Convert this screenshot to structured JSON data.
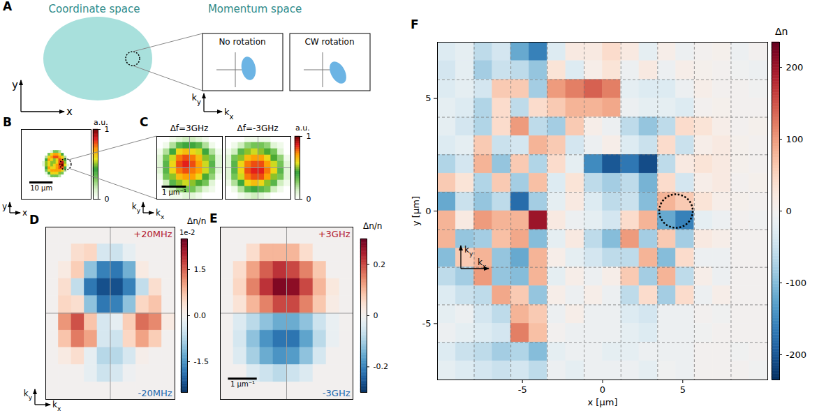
{
  "chart_data": [
    {
      "type": "heatmap",
      "panel": "B",
      "xlim": [
        -15,
        15
      ],
      "ylim": [
        -15,
        15
      ],
      "xticks": [],
      "yticks": [],
      "grid": false,
      "tick_labels": false,
      "cells_extent": [
        -7,
        7
      ],
      "cells": [
        [
          0,
          0,
          0,
          0,
          0,
          0,
          0,
          0,
          0,
          0,
          0,
          0
        ],
        [
          0,
          0,
          0,
          0,
          0.1,
          0.3,
          0.3,
          0.2,
          0,
          0,
          0,
          0
        ],
        [
          0,
          0,
          0,
          0.3,
          0.6,
          0.7,
          0.7,
          0.6,
          0.4,
          0,
          0,
          0
        ],
        [
          0,
          0,
          0.2,
          0.6,
          0.7,
          0.8,
          0.8,
          0.7,
          0.6,
          0.2,
          0,
          0
        ],
        [
          0,
          0,
          0.4,
          0.7,
          0.6,
          0.5,
          0.6,
          0.8,
          0.7,
          0.4,
          0,
          0
        ],
        [
          0,
          0.1,
          0.5,
          0.6,
          0.5,
          0.5,
          0.6,
          0.8,
          0.9,
          0.5,
          0,
          0
        ],
        [
          0,
          0.1,
          0.5,
          0.6,
          0.5,
          0.6,
          0.7,
          0.8,
          1,
          0.6,
          0.1,
          0
        ],
        [
          0,
          0,
          0.4,
          0.7,
          0.6,
          0.6,
          0.7,
          0.8,
          0.8,
          0.4,
          0,
          0
        ],
        [
          0,
          0,
          0.3,
          0.6,
          0.7,
          0.7,
          0.7,
          0.7,
          0.6,
          0.2,
          0,
          0
        ],
        [
          0,
          0,
          0.1,
          0.4,
          0.6,
          0.6,
          0.6,
          0.5,
          0.3,
          0,
          0,
          0
        ],
        [
          0,
          0,
          0,
          0.1,
          0.3,
          0.3,
          0.3,
          0.2,
          0,
          0,
          0,
          0
        ],
        [
          0,
          0,
          0,
          0,
          0,
          0,
          0,
          0,
          0,
          0,
          0,
          0
        ]
      ],
      "scale_bar": {
        "length": 10,
        "label": "10 µm"
      },
      "axis_labels": {
        "x": "x",
        "y": "y"
      },
      "colorbar": {
        "range": [
          0,
          1
        ],
        "ticks": [
          0,
          1
        ],
        "label": "a.u."
      }
    },
    {
      "type": "heatmap",
      "panel": "C",
      "xlim": [
        -1.35,
        1.35
      ],
      "ylim": [
        -1.35,
        1.35
      ],
      "xticks": [
        0
      ],
      "yticks": [
        0
      ],
      "grid": true,
      "tick_labels": false,
      "panels": [
        {
          "title": "Δf=3GHz",
          "cells": [
            [
              0,
              0,
              0.05,
              0.1,
              0.15,
              0.15,
              0.1,
              0.05,
              0,
              0
            ],
            [
              0,
              0.05,
              0.2,
              0.35,
              0.4,
              0.4,
              0.35,
              0.2,
              0.05,
              0
            ],
            [
              0.05,
              0.2,
              0.4,
              0.6,
              0.65,
              0.6,
              0.55,
              0.4,
              0.2,
              0.05
            ],
            [
              0.1,
              0.3,
              0.55,
              0.75,
              0.8,
              0.75,
              0.65,
              0.5,
              0.3,
              0.1
            ],
            [
              0.1,
              0.35,
              0.6,
              0.8,
              0.85,
              0.8,
              0.7,
              0.55,
              0.35,
              0.1
            ],
            [
              0.1,
              0.35,
              0.6,
              0.75,
              0.8,
              0.75,
              0.7,
              0.55,
              0.3,
              0.1
            ],
            [
              0.05,
              0.3,
              0.5,
              0.65,
              0.7,
              0.7,
              0.6,
              0.45,
              0.25,
              0.05
            ],
            [
              0,
              0.15,
              0.35,
              0.5,
              0.55,
              0.5,
              0.45,
              0.3,
              0.1,
              0
            ],
            [
              0,
              0.05,
              0.15,
              0.25,
              0.3,
              0.3,
              0.2,
              0.1,
              0.05,
              0
            ],
            [
              0,
              0,
              0.05,
              0.05,
              0.1,
              0.1,
              0.05,
              0,
              0,
              0
            ]
          ]
        },
        {
          "title": "Δf=-3GHz",
          "cells": [
            [
              0,
              0,
              0,
              0.05,
              0.05,
              0.05,
              0.05,
              0,
              0,
              0
            ],
            [
              0,
              0.05,
              0.15,
              0.25,
              0.3,
              0.3,
              0.25,
              0.1,
              0.05,
              0
            ],
            [
              0.05,
              0.15,
              0.35,
              0.5,
              0.55,
              0.5,
              0.45,
              0.3,
              0.1,
              0
            ],
            [
              0.1,
              0.3,
              0.5,
              0.65,
              0.7,
              0.7,
              0.6,
              0.45,
              0.25,
              0.05
            ],
            [
              0.1,
              0.35,
              0.6,
              0.75,
              0.8,
              0.8,
              0.7,
              0.55,
              0.3,
              0.1
            ],
            [
              0.1,
              0.35,
              0.6,
              0.8,
              0.85,
              0.85,
              0.75,
              0.6,
              0.35,
              0.1
            ],
            [
              0.1,
              0.3,
              0.55,
              0.75,
              0.8,
              0.8,
              0.7,
              0.5,
              0.3,
              0.1
            ],
            [
              0.05,
              0.2,
              0.4,
              0.6,
              0.65,
              0.6,
              0.5,
              0.35,
              0.15,
              0.05
            ],
            [
              0,
              0.05,
              0.2,
              0.35,
              0.4,
              0.35,
              0.3,
              0.15,
              0.05,
              0
            ],
            [
              0,
              0,
              0.05,
              0.1,
              0.15,
              0.1,
              0.05,
              0,
              0,
              0
            ]
          ]
        }
      ],
      "scale_bar": {
        "length": 1,
        "label": "1 µm⁻¹"
      },
      "axis_labels": {
        "x": "kx",
        "y": "ky"
      },
      "colorbar": {
        "range": [
          0,
          1
        ],
        "ticks": [
          0,
          1
        ],
        "label": "a.u."
      }
    },
    {
      "type": "heatmap",
      "panel": "D",
      "xlim": [
        -2.3,
        2.3
      ],
      "ylim": [
        -3.1,
        3.1
      ],
      "xticks": [
        0
      ],
      "yticks": [
        0
      ],
      "grid": true,
      "tick_labels": false,
      "cells": [
        [
          0,
          0,
          0,
          0,
          0,
          0,
          0,
          0,
          0,
          0
        ],
        [
          0,
          0,
          0.4,
          0.5,
          -0.4,
          -0.5,
          -0.2,
          0,
          0,
          0
        ],
        [
          0,
          0.2,
          0.6,
          -1.0,
          -1.7,
          -1.8,
          -1.2,
          0.2,
          0,
          0
        ],
        [
          0,
          0.4,
          -0.6,
          -1.8,
          -2.2,
          -2.2,
          -1.7,
          -0.6,
          0.4,
          0
        ],
        [
          0,
          0.5,
          0.4,
          -1.0,
          -1.8,
          -1.7,
          -1.0,
          0.5,
          0.7,
          0
        ],
        [
          0,
          1.1,
          1.6,
          0.7,
          -0.4,
          -0.2,
          0.6,
          1.4,
          1.2,
          0.2
        ],
        [
          0,
          0.7,
          1.3,
          1.0,
          -0.4,
          -0.5,
          0.5,
          1.0,
          0.6,
          0
        ],
        [
          0,
          0.2,
          0.4,
          -0.2,
          -0.7,
          -0.7,
          -0.4,
          0.1,
          0,
          0
        ],
        [
          0,
          0,
          0,
          -0.2,
          -0.5,
          -0.4,
          -0.1,
          0,
          0,
          0
        ],
        [
          0,
          0,
          0,
          0,
          0,
          0,
          0,
          0,
          0,
          0
        ]
      ],
      "annotations": [
        {
          "text": "+20MHz",
          "color": "#b2182b"
        },
        {
          "text": "-20MHz",
          "color": "#2166ac"
        }
      ],
      "axis_labels": {
        "x": "kx",
        "y": "ky"
      },
      "colorbar": {
        "range": [
          -2.5,
          2.5
        ],
        "ticks": [
          -1.5,
          {
            "value": 0,
            "label": "0.0"
          },
          1.5
        ],
        "label": "Δn/n",
        "multiplier": "1e-2"
      }
    },
    {
      "type": "heatmap",
      "panel": "E",
      "xlim": [
        -2.3,
        2.3
      ],
      "ylim": [
        -3.1,
        3.1
      ],
      "xticks": [
        0
      ],
      "yticks": [
        0
      ],
      "grid": true,
      "tick_labels": false,
      "cells": [
        [
          0,
          0,
          0,
          0,
          0,
          0,
          0,
          0,
          0,
          0
        ],
        [
          0,
          0,
          0.05,
          0.1,
          0.1,
          0.1,
          0.05,
          0,
          0,
          0
        ],
        [
          0,
          0.05,
          0.12,
          0.18,
          0.22,
          0.2,
          0.15,
          0.08,
          0,
          0
        ],
        [
          0,
          0.06,
          0.15,
          0.22,
          0.28,
          0.27,
          0.2,
          0.1,
          0.03,
          0
        ],
        [
          0,
          0.04,
          0.1,
          0.15,
          0.2,
          0.2,
          0.15,
          0.08,
          0.02,
          0
        ],
        [
          0,
          -0.04,
          -0.08,
          -0.12,
          -0.15,
          -0.15,
          -0.12,
          -0.06,
          -0.02,
          0
        ],
        [
          0,
          -0.05,
          -0.12,
          -0.18,
          -0.22,
          -0.22,
          -0.16,
          -0.08,
          -0.02,
          0
        ],
        [
          0,
          -0.04,
          -0.1,
          -0.15,
          -0.18,
          -0.17,
          -0.12,
          -0.05,
          0,
          0
        ],
        [
          0,
          0,
          -0.04,
          -0.06,
          -0.08,
          -0.06,
          -0.04,
          0,
          0,
          0
        ],
        [
          0,
          0,
          0,
          0,
          0,
          0,
          0,
          0,
          0,
          0
        ]
      ],
      "annotations": [
        {
          "text": "+3GHz",
          "color": "#b2182b"
        },
        {
          "text": "-3GHz",
          "color": "#2166ac"
        }
      ],
      "scale_bar": {
        "length": 1,
        "label": "1 µm⁻¹"
      },
      "colorbar": {
        "range": [
          -0.3,
          0.3
        ],
        "ticks": [
          -0.2,
          0,
          0.2
        ],
        "label": "Δn/n"
      }
    },
    {
      "type": "heatmap",
      "panel": "F",
      "xlim": [
        -10.3,
        10.3
      ],
      "ylim": [
        -7.5,
        7.5
      ],
      "xticks": [
        -5,
        0,
        5
      ],
      "yticks": [
        -5,
        0,
        5
      ],
      "xlabel": "x [µm]",
      "ylabel": "y [µm]",
      "cells": [
        [
          -30,
          -20,
          -60,
          -40,
          -120,
          -160,
          -30,
          20,
          20,
          40,
          20,
          -20,
          10,
          -10,
          0,
          5,
          -10,
          0
        ],
        [
          -40,
          -20,
          -80,
          -50,
          -60,
          -90,
          30,
          -30,
          10,
          30,
          -10,
          20,
          -10,
          10,
          5,
          0,
          -5,
          -10
        ],
        [
          -30,
          -20,
          -40,
          60,
          60,
          -80,
          100,
          120,
          140,
          120,
          -20,
          -30,
          -30,
          -10,
          10,
          0,
          0,
          -5
        ],
        [
          -20,
          -30,
          -70,
          40,
          -60,
          40,
          60,
          80,
          80,
          90,
          -10,
          -20,
          -20,
          -30,
          0,
          5,
          0,
          0
        ],
        [
          -20,
          -40,
          -70,
          40,
          100,
          -60,
          -80,
          60,
          10,
          -10,
          -60,
          -90,
          -60,
          40,
          30,
          10,
          0,
          5
        ],
        [
          -30,
          -20,
          60,
          -50,
          -40,
          80,
          60,
          -40,
          -10,
          10,
          -30,
          -50,
          40,
          -50,
          10,
          20,
          5,
          0
        ],
        [
          -70,
          -40,
          80,
          -90,
          60,
          -70,
          40,
          -20,
          -150,
          -200,
          -170,
          -210,
          -60,
          20,
          30,
          20,
          5,
          0
        ],
        [
          60,
          30,
          -70,
          60,
          -80,
          70,
          -30,
          30,
          -60,
          -80,
          -60,
          -110,
          40,
          -40,
          10,
          20,
          0,
          5
        ],
        [
          -120,
          -50,
          -90,
          -60,
          -180,
          -80,
          -20,
          20,
          -30,
          -60,
          -50,
          -100,
          80,
          60,
          30,
          10,
          5,
          0
        ],
        [
          80,
          20,
          100,
          80,
          80,
          200,
          20,
          -10,
          -20,
          -40,
          40,
          80,
          -120,
          -160,
          -20,
          -10,
          0,
          -5
        ],
        [
          80,
          -90,
          -80,
          70,
          90,
          -100,
          -20,
          20,
          -60,
          -100,
          100,
          -80,
          60,
          -80,
          20,
          10,
          0,
          0
        ],
        [
          -100,
          60,
          80,
          -90,
          -120,
          80,
          10,
          -20,
          -40,
          -60,
          -60,
          80,
          -100,
          40,
          -10,
          -10,
          0,
          0
        ],
        [
          -60,
          -80,
          100,
          -90,
          -100,
          80,
          -20,
          10,
          -10,
          10,
          60,
          -80,
          80,
          -60,
          10,
          -10,
          0,
          0
        ],
        [
          -30,
          -50,
          -60,
          90,
          60,
          -90,
          10,
          -10,
          10,
          -10,
          -60,
          40,
          -80,
          40,
          -10,
          10,
          0,
          0
        ],
        [
          -20,
          -10,
          -40,
          -60,
          80,
          60,
          -10,
          10,
          -10,
          -10,
          -30,
          -40,
          -10,
          -10,
          0,
          -5,
          0,
          0
        ],
        [
          -10,
          -20,
          -30,
          -40,
          120,
          70,
          0,
          -10,
          -10,
          -10,
          -20,
          -30,
          -10,
          -10,
          -5,
          0,
          0,
          0
        ],
        [
          -30,
          -50,
          -60,
          -80,
          -70,
          -100,
          -20,
          -10,
          -10,
          -20,
          -20,
          -10,
          -10,
          -10,
          0,
          0,
          -5,
          0
        ],
        [
          -20,
          -30,
          -40,
          -50,
          -40,
          -60,
          -10,
          -20,
          -10,
          -10,
          -10,
          -20,
          -5,
          -10,
          0,
          0,
          0,
          -5
        ]
      ],
      "axis_labels": {
        "x": "kx",
        "y": "ky"
      },
      "colorbar": {
        "range": [
          -235,
          235
        ],
        "ticks": [
          -200,
          -100,
          0,
          100,
          200
        ],
        "label": "Δn"
      }
    }
  ],
  "diagram": {
    "panel": "A",
    "coordinate_space": "Coordinate space",
    "momentum_space": "Momentum space",
    "boxes": [
      "No rotation",
      "CW rotation"
    ],
    "coordinate_axes": {
      "x": "x",
      "y": "y"
    },
    "momentum_axes": {
      "x": "kx",
      "y": "ky"
    }
  }
}
